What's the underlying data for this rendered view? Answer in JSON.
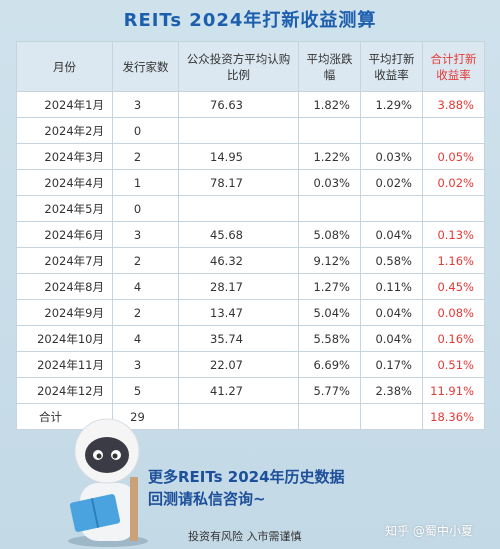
{
  "title": "REITs 2024年打新收益测算",
  "table": {
    "headers": [
      "月份",
      "发行家数",
      "公众投资方平均认购比例",
      "平均涨跌幅",
      "平均打新收益率",
      "合计打新收益率"
    ],
    "rows": [
      [
        "2024年1月",
        "3",
        "76.63",
        "1.82%",
        "1.29%",
        "3.88%"
      ],
      [
        "2024年2月",
        "0",
        "",
        "",
        "",
        ""
      ],
      [
        "2024年3月",
        "2",
        "14.95",
        "1.22%",
        "0.03%",
        "0.05%"
      ],
      [
        "2024年4月",
        "1",
        "78.17",
        "0.03%",
        "0.02%",
        "0.02%"
      ],
      [
        "2024年5月",
        "0",
        "",
        "",
        "",
        ""
      ],
      [
        "2024年6月",
        "3",
        "45.68",
        "5.08%",
        "0.04%",
        "0.13%"
      ],
      [
        "2024年7月",
        "2",
        "46.32",
        "9.12%",
        "0.58%",
        "1.16%"
      ],
      [
        "2024年8月",
        "4",
        "28.17",
        "1.27%",
        "0.11%",
        "0.45%"
      ],
      [
        "2024年9月",
        "2",
        "13.47",
        "5.04%",
        "0.04%",
        "0.08%"
      ],
      [
        "2024年10月",
        "4",
        "35.74",
        "5.58%",
        "0.04%",
        "0.16%"
      ],
      [
        "2024年11月",
        "3",
        "22.07",
        "6.69%",
        "0.17%",
        "0.51%"
      ],
      [
        "2024年12月",
        "5",
        "41.27",
        "5.77%",
        "2.38%",
        "11.91%"
      ]
    ],
    "total": [
      "合计",
      "29",
      "",
      "",
      "",
      "18.36%"
    ]
  },
  "banner": {
    "line1": "更多REITs 2024年历史数据",
    "line2": "回测请私信咨询~"
  },
  "footer": "投资有风险  入市需谨慎",
  "watermark": "知乎 @蜀中小夏",
  "colors": {
    "title": "#1d5fae",
    "highlight": "#e53935",
    "banner": "#1d4f9a"
  }
}
